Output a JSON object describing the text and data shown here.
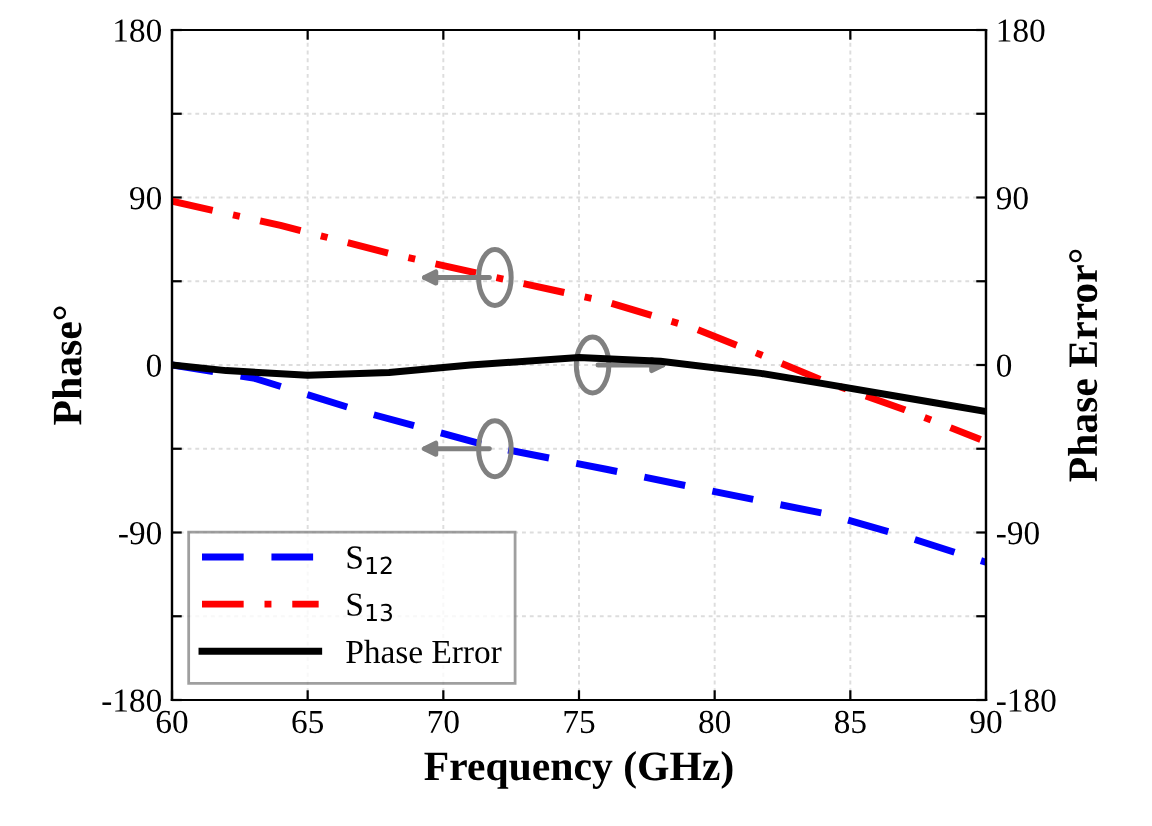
{
  "chart_data": {
    "type": "line",
    "xlabel": "Frequency (GHz)",
    "ylabel": "Phase°",
    "y2label": "Phase Error°",
    "xlim": [
      60,
      90
    ],
    "xticks": [
      60,
      65,
      70,
      75,
      80,
      85,
      90
    ],
    "ylim": [
      -180,
      180
    ],
    "yticks": [
      -180,
      {
        "value": -135,
        "label": null
      },
      -90,
      {
        "value": -45,
        "label": null
      },
      0,
      {
        "value": 45,
        "label": null
      },
      90,
      {
        "value": 135,
        "label": null
      },
      180
    ],
    "y2lim": [
      -180,
      180
    ],
    "y2ticks": [
      -180,
      {
        "value": -135,
        "label": null
      },
      -90,
      {
        "value": -45,
        "label": null
      },
      0,
      {
        "value": 45,
        "label": null
      },
      90,
      {
        "value": 135,
        "label": null
      },
      180
    ],
    "grid": true,
    "legend": "bottom left",
    "series": [
      {
        "name": "S$_{12}$",
        "color": "#0000ff",
        "line_style": "dashed",
        "x": [
          60,
          63,
          67,
          71.8,
          76,
          80,
          84.1,
          87,
          90
        ],
        "values": [
          0,
          -7,
          -25,
          -44,
          -56,
          -68,
          -80,
          -92,
          -106
        ]
      },
      {
        "name": "S$_{13}$",
        "color": "#ff0000",
        "line_style": "dashdot",
        "x": [
          60,
          64,
          68,
          71.8,
          76,
          79.2,
          81.7,
          84.1,
          87,
          89.8
        ],
        "values": [
          88,
          75,
          60,
          47.5,
          34,
          20,
          5.5,
          -9,
          -24,
          -40
        ]
      },
      {
        "name": "Phase Error",
        "color": "#000000",
        "line_style": "solid",
        "axis": "y2",
        "x": [
          60,
          62,
          65,
          68,
          71,
          75,
          78,
          81.7,
          84,
          86.6,
          88,
          90
        ],
        "values": [
          0,
          -3,
          -5.5,
          -4,
          0,
          4,
          2,
          -4.5,
          -10,
          -16.5,
          -20,
          -25
        ]
      }
    ]
  }
}
